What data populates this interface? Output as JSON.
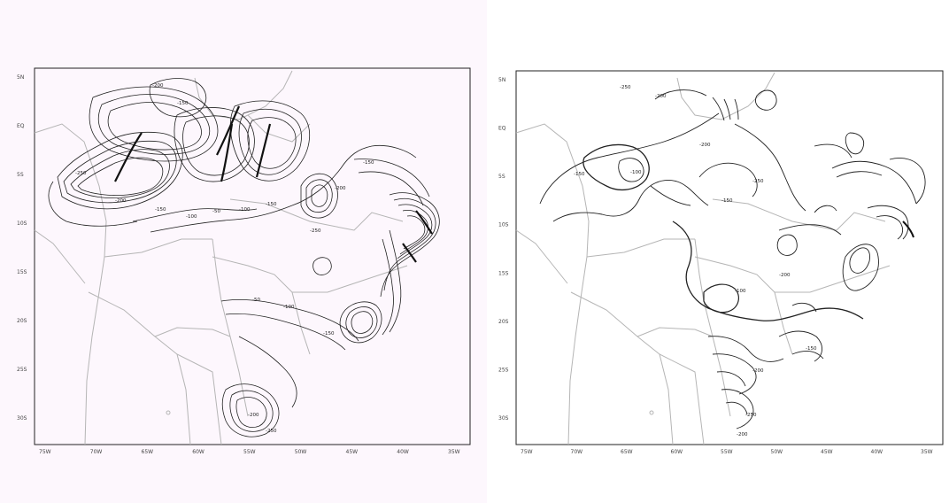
{
  "panels": [
    {
      "id": "left",
      "lat_ticks": [
        "5N",
        "EQ",
        "5S",
        "10S",
        "15S",
        "20S",
        "25S",
        "30S"
      ],
      "lon_ticks": [
        "75W",
        "70W",
        "65W",
        "60W",
        "55W",
        "50W",
        "45W",
        "40W",
        "35W"
      ],
      "contour_labels": [
        "-200",
        "-150",
        "-250",
        "-200",
        "-150",
        "-100",
        "-50",
        "-100",
        "-150",
        "-250",
        "-200",
        "-150",
        "-50",
        "-100",
        "-150",
        "-200",
        "-250"
      ]
    },
    {
      "id": "right",
      "lat_ticks": [
        "5N",
        "EQ",
        "5S",
        "10S",
        "15S",
        "20S",
        "25S",
        "30S"
      ],
      "lon_ticks": [
        "75W",
        "70W",
        "65W",
        "60W",
        "55W",
        "50W",
        "45W",
        "40W",
        "35W"
      ],
      "contour_labels": [
        "-250",
        "-200",
        "-150",
        "-100",
        "-200",
        "-250",
        "-150",
        "-200",
        "-100",
        "-150",
        "-200",
        "-250",
        "-200"
      ]
    }
  ],
  "colors": {
    "left_background": "#fdf7fd",
    "right_background": "#ffffff",
    "frame": "#222222",
    "borders": "#b0b0b0",
    "contours": "#222222"
  }
}
